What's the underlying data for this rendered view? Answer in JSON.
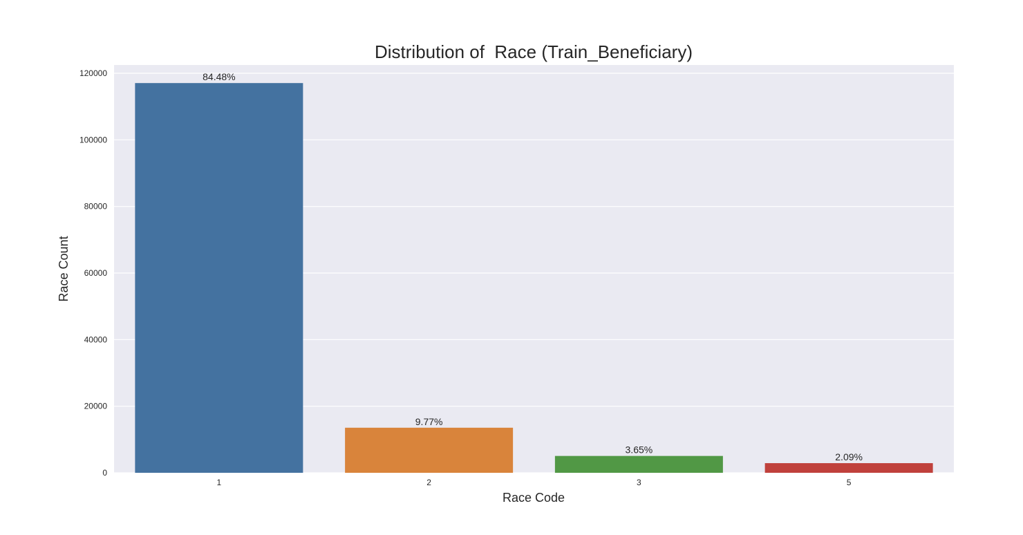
{
  "chart_data": {
    "type": "bar",
    "title": "Distribution of  Race (Train_Beneficiary)",
    "xlabel": "Race Code",
    "ylabel": "Race Count",
    "categories": [
      "1",
      "2",
      "3",
      "5"
    ],
    "values": [
      117057,
      13538,
      5059,
      2896
    ],
    "data_labels": [
      "84.48%",
      "9.77%",
      "3.65%",
      "2.09%"
    ],
    "colors": [
      "#4472a0",
      "#d9843b",
      "#519845",
      "#c0413c"
    ],
    "ylim": [
      0,
      120000
    ],
    "yticks": [
      0,
      20000,
      40000,
      60000,
      80000,
      100000,
      120000
    ],
    "grid": true,
    "background": "#eaeaf2"
  }
}
